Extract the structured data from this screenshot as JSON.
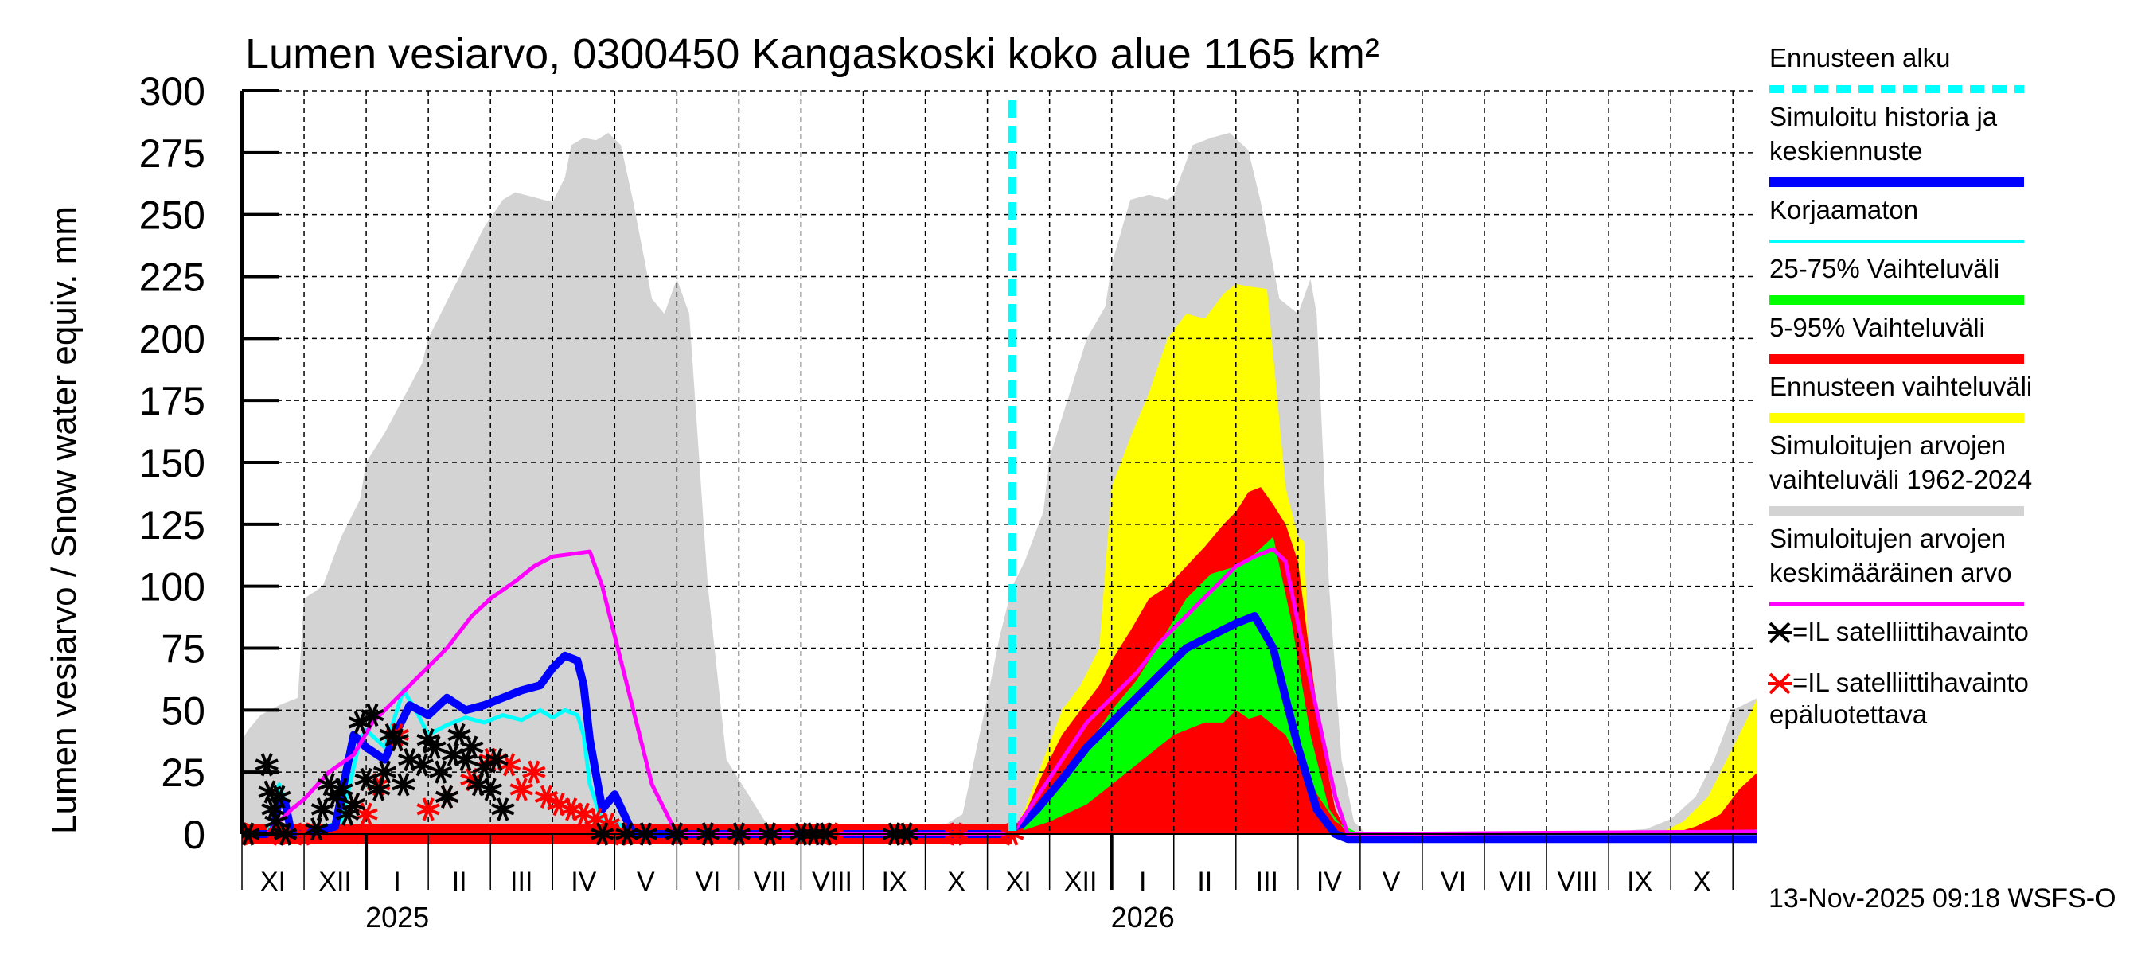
{
  "chart_data": {
    "type": "area",
    "title": "Lumen vesiarvo, 0300450 Kangaskoski koko alue 1165 km²",
    "ylabel": "Lumen vesiarvo / Snow water equiv.    mm",
    "xlabel": "",
    "ylim": [
      0,
      300
    ],
    "yticks": [
      0,
      25,
      50,
      75,
      100,
      125,
      150,
      175,
      200,
      225,
      250,
      275,
      300
    ],
    "grid": true,
    "x_unit": "months since 2024-11-01",
    "xlim": [
      0,
      24.4
    ],
    "month_labels": [
      "XI",
      "XII",
      "I",
      "II",
      "III",
      "IV",
      "V",
      "VI",
      "VII",
      "VIII",
      "IX",
      "X",
      "XI",
      "XII",
      "I",
      "II",
      "III",
      "IV",
      "V",
      "VI",
      "VII",
      "VIII",
      "IX",
      "X"
    ],
    "year_labels": [
      {
        "label": "2025",
        "at_month": 2
      },
      {
        "label": "2026",
        "at_month": 14
      }
    ],
    "forecast_start": 12.4,
    "legend_position": "right",
    "timestamp": "13-Nov-2025 09:18 WSFS-O",
    "colors": {
      "forecast_start": "#00ffff",
      "simulated": "#0000ff",
      "uncorrected": "#00ffff",
      "p25_75": "#00ff00",
      "p5_95": "#ff0000",
      "forecast_range": "#ffff00",
      "hist_range": "#d3d3d3",
      "hist_mean": "#ff00ff",
      "obs": "#000000",
      "obs_unreliable": "#ff0000"
    },
    "legend": [
      {
        "key": "forecast_start",
        "label": [
          "Ennusteen alku"
        ],
        "style": "dashed"
      },
      {
        "key": "simulated",
        "label": [
          "Simuloitu historia ja",
          "keskiennuste"
        ],
        "style": "thick"
      },
      {
        "key": "uncorrected",
        "label": [
          "Korjaamaton"
        ],
        "style": "thin"
      },
      {
        "key": "p25_75",
        "label": [
          "25-75% Vaihteluväli"
        ],
        "style": "thick"
      },
      {
        "key": "p5_95",
        "label": [
          "5-95% Vaihteluväli"
        ],
        "style": "thick"
      },
      {
        "key": "forecast_range",
        "label": [
          "Ennusteen vaihteluväli"
        ],
        "style": "thick"
      },
      {
        "key": "hist_range",
        "label": [
          "Simuloitujen arvojen",
          "vaihteluväli 1962-2024"
        ],
        "style": "thick"
      },
      {
        "key": "hist_mean",
        "label": [
          "Simuloitujen arvojen",
          "keskimääräinen arvo"
        ],
        "style": "medium"
      },
      {
        "key": "obs",
        "label": [
          "=IL satelliittihavainto"
        ],
        "style": "marker"
      },
      {
        "key": "obs_unreliable",
        "label": [
          "=IL satelliittihavainto",
          "epäluotettava"
        ],
        "style": "marker"
      }
    ],
    "series": {
      "hist_range_max": {
        "x": [
          0,
          0.1,
          0.3,
          0.6,
          0.9,
          1.0,
          1.3,
          1.6,
          1.9,
          2.0,
          2.3,
          2.6,
          2.9,
          3.0,
          3.3,
          3.6,
          3.9,
          4.2,
          4.4,
          4.7,
          5.0,
          5.2,
          5.3,
          5.5,
          5.7,
          5.9,
          6.1,
          6.3,
          6.6,
          6.8,
          7.0,
          7.2,
          7.5,
          7.8,
          8.5,
          9.5,
          10.5,
          11.2,
          11.6,
          12.0,
          12.2,
          12.4,
          12.6,
          12.9,
          13.0,
          13.3,
          13.6,
          13.9,
          14.0,
          14.3,
          14.6,
          14.9,
          15.0,
          15.3,
          15.6,
          15.9,
          16.2,
          16.4,
          16.7,
          17.0,
          17.2,
          17.3,
          17.5,
          17.7,
          17.9,
          18.1,
          18.3,
          18.6,
          18.8,
          19.0,
          19.5,
          20.5,
          21.5,
          22.6,
          23.0,
          23.4,
          23.7,
          24.0,
          24.4
        ],
        "y": [
          38,
          42,
          48,
          52,
          55,
          95,
          100,
          120,
          135,
          150,
          162,
          176,
          190,
          200,
          215,
          230,
          245,
          256,
          259,
          257,
          255,
          265,
          278,
          281,
          280,
          283,
          278,
          255,
          216,
          210,
          224,
          210,
          100,
          30,
          2,
          0,
          0,
          2,
          8,
          55,
          80,
          100,
          110,
          130,
          152,
          176,
          200,
          213,
          230,
          256,
          258,
          256,
          258,
          278,
          281,
          283,
          276,
          255,
          216,
          210,
          224,
          210,
          100,
          30,
          5,
          0,
          0,
          0,
          0,
          0,
          0,
          0,
          0,
          2,
          6,
          15,
          30,
          50,
          55
        ]
      },
      "hist_range_min": {
        "x": [
          0,
          24.4
        ],
        "y": [
          0,
          0
        ]
      },
      "forecast_max": {
        "x": [
          12.4,
          12.6,
          12.9,
          13.2,
          13.5,
          13.8,
          14.0,
          14.3,
          14.6,
          14.9,
          15.2,
          15.5,
          15.8,
          16.0,
          16.2,
          16.5,
          16.8,
          17.0,
          17.1,
          17.2,
          17.4,
          17.6,
          17.8,
          18.0,
          22.8,
          23.2,
          23.6,
          24.0,
          24.4
        ],
        "y": [
          0,
          10,
          30,
          50,
          60,
          75,
          140,
          160,
          178,
          200,
          210,
          208,
          218,
          222,
          221,
          220,
          140,
          120,
          118,
          50,
          20,
          5,
          0,
          0,
          0,
          5,
          15,
          35,
          55
        ]
      },
      "p5_95_max": {
        "x": [
          12.4,
          12.6,
          12.9,
          13.2,
          13.5,
          13.8,
          14.0,
          14.3,
          14.6,
          14.9,
          15.2,
          15.5,
          15.8,
          16.0,
          16.2,
          16.4,
          16.6,
          16.8,
          17.0,
          17.2,
          17.4,
          17.6,
          17.8,
          18.0,
          23.0,
          23.4,
          23.8,
          24.1,
          24.4
        ],
        "y": [
          0,
          8,
          25,
          40,
          50,
          60,
          70,
          82,
          95,
          100,
          108,
          116,
          125,
          130,
          138,
          140,
          133,
          125,
          110,
          70,
          35,
          10,
          0,
          0,
          0,
          3,
          8,
          18,
          25
        ]
      },
      "p5_95_min": {
        "x": [
          12.4,
          13.5,
          14.0,
          14.5,
          15.0,
          15.3,
          15.6,
          16.0,
          16.3,
          16.6,
          17.0,
          17.4,
          18.0,
          24.4
        ],
        "y": [
          0,
          0,
          3,
          8,
          20,
          30,
          40,
          50,
          45,
          35,
          15,
          3,
          0,
          0
        ]
      },
      "p25_75_max": {
        "x": [
          12.4,
          12.8,
          13.2,
          13.6,
          14.0,
          14.4,
          14.8,
          15.2,
          15.6,
          16.0,
          16.3,
          16.6,
          16.9,
          17.2,
          17.5,
          17.8,
          18.0,
          24.0,
          24.4
        ],
        "y": [
          0,
          10,
          20,
          35,
          50,
          62,
          78,
          95,
          105,
          108,
          113,
          120,
          85,
          40,
          10,
          0,
          0,
          0,
          2
        ]
      },
      "p25_75_min": {
        "x": [
          12.4,
          13.0,
          13.6,
          14.0,
          14.5,
          15.0,
          15.5,
          16.0,
          16.4,
          16.8,
          17.2,
          17.6,
          18.0,
          24.4
        ],
        "y": [
          0,
          5,
          12,
          20,
          30,
          40,
          45,
          45,
          48,
          40,
          20,
          5,
          0,
          0
        ]
      },
      "simulated": {
        "x": [
          0,
          0.3,
          0.5,
          0.6,
          0.7,
          0.8,
          1.0,
          1.5,
          1.8,
          2.0,
          2.3,
          2.5,
          2.7,
          3.0,
          3.3,
          3.6,
          3.9,
          4.2,
          4.5,
          4.8,
          5.0,
          5.2,
          5.4,
          5.5,
          5.6,
          5.8,
          6.0,
          6.3,
          7,
          12.4,
          12.8,
          13.2,
          13.6,
          14.0,
          14.4,
          14.8,
          15.2,
          15.6,
          16.0,
          16.3,
          16.6,
          16.8,
          17.0,
          17.3,
          17.6,
          17.8,
          18.0,
          24.4
        ],
        "y": [
          0,
          0,
          0,
          15,
          12,
          0,
          0,
          3,
          40,
          35,
          30,
          42,
          52,
          48,
          55,
          50,
          52,
          55,
          58,
          60,
          67,
          72,
          70,
          60,
          38,
          10,
          16,
          0,
          0,
          0,
          10,
          22,
          35,
          45,
          55,
          65,
          75,
          80,
          85,
          88,
          75,
          55,
          35,
          10,
          0,
          -2,
          -2,
          -2
        ]
      },
      "uncorrected": {
        "x": [
          0,
          0.4,
          0.5,
          0.6,
          0.7,
          0.8,
          1.0,
          1.6,
          1.9,
          2.0,
          2.3,
          2.6,
          2.8,
          3.0,
          3.3,
          3.6,
          3.9,
          4.2,
          4.5,
          4.8,
          5.0,
          5.2,
          5.4,
          5.5,
          5.6,
          5.8,
          6.0,
          6.3,
          7
        ],
        "y": [
          0,
          0,
          5,
          20,
          12,
          0,
          0,
          5,
          38,
          42,
          35,
          58,
          50,
          40,
          44,
          47,
          45,
          48,
          46,
          50,
          47,
          50,
          48,
          40,
          20,
          5,
          5,
          0,
          0
        ]
      },
      "hist_mean": {
        "x": [
          0,
          0.4,
          0.8,
          1.0,
          1.4,
          1.8,
          2.1,
          2.5,
          2.9,
          3.3,
          3.7,
          4.0,
          4.4,
          4.7,
          5.0,
          5.3,
          5.6,
          5.8,
          6.0,
          6.3,
          6.6,
          7.0,
          12.4,
          12.8,
          13.2,
          13.6,
          14.0,
          14.4,
          14.8,
          15.2,
          15.6,
          16.0,
          16.3,
          16.6,
          16.8,
          17.0,
          17.3,
          17.6,
          17.8,
          18.0,
          24.4
        ],
        "y": [
          0,
          0,
          10,
          14,
          25,
          32,
          45,
          55,
          65,
          75,
          88,
          95,
          102,
          108,
          112,
          113,
          114,
          100,
          80,
          50,
          20,
          0,
          0,
          15,
          30,
          45,
          55,
          65,
          78,
          88,
          98,
          108,
          112,
          115,
          110,
          85,
          50,
          15,
          0,
          0,
          1
        ]
      },
      "obs_reliable": {
        "x": [
          0.1,
          0.4,
          0.45,
          0.5,
          0.55,
          0.6,
          0.7,
          1.2,
          1.3,
          1.4,
          1.5,
          1.6,
          1.7,
          1.8,
          1.9,
          2.0,
          2.1,
          2.2,
          2.3,
          2.4,
          2.5,
          2.6,
          2.7,
          2.9,
          3.0,
          3.1,
          3.2,
          3.3,
          3.4,
          3.5,
          3.6,
          3.7,
          3.8,
          3.9,
          4.0,
          4.1,
          4.2,
          5.8,
          6.2,
          6.5,
          7.0,
          7.5,
          8.0,
          8.5,
          9.0,
          9.2,
          9.4,
          10.5,
          10.7
        ],
        "y": [
          0,
          28,
          17,
          10,
          5,
          15,
          0,
          2,
          10,
          20,
          15,
          18,
          8,
          12,
          45,
          22,
          48,
          18,
          25,
          40,
          38,
          20,
          30,
          28,
          38,
          35,
          25,
          15,
          32,
          40,
          30,
          35,
          20,
          27,
          18,
          30,
          10,
          0,
          0,
          0,
          0,
          0,
          0,
          0,
          0,
          0,
          0,
          0,
          0
        ]
      },
      "obs_unreliable": {
        "x": [
          0.0,
          0.6,
          1.0,
          1.8,
          2.0,
          2.2,
          2.5,
          3.0,
          3.3,
          3.7,
          4.0,
          4.3,
          4.5,
          4.7,
          4.9,
          5.1,
          5.3,
          5.5,
          5.7,
          5.9,
          6.1,
          6.5,
          7.5,
          8.5,
          9.5,
          10.5,
          11.5,
          12.4
        ],
        "y": [
          0,
          0,
          0,
          12,
          8,
          20,
          40,
          10,
          15,
          22,
          30,
          28,
          18,
          25,
          15,
          12,
          10,
          8,
          6,
          4,
          0,
          0,
          0,
          0,
          0,
          0,
          0,
          0
        ]
      }
    }
  }
}
